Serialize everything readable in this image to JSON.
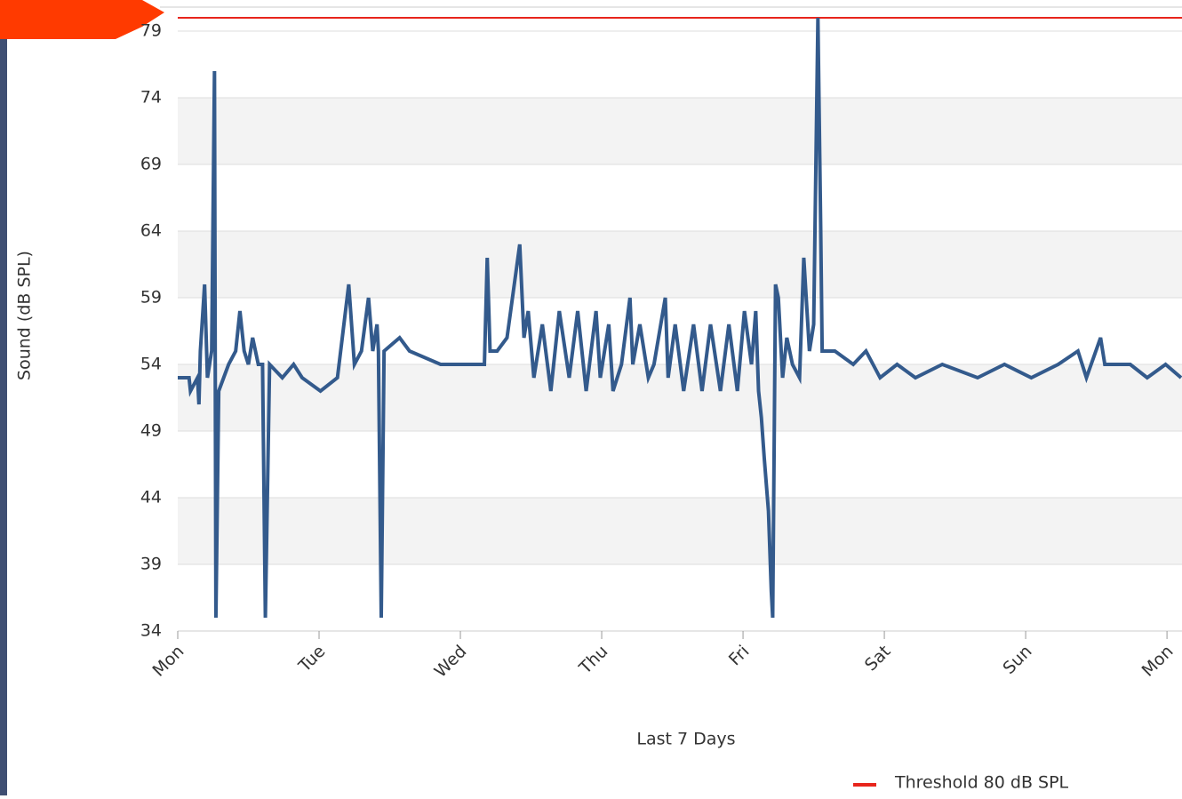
{
  "chart_data": {
    "type": "line",
    "y_label": "Sound (dB SPL)",
    "x_label": "Last 7 Days",
    "x": [
      0.0,
      0.08,
      0.09,
      0.14,
      0.15,
      0.16,
      0.19,
      0.21,
      0.24,
      0.26,
      0.27,
      0.29,
      0.36,
      0.41,
      0.44,
      0.47,
      0.5,
      0.53,
      0.57,
      0.6,
      0.62,
      0.65,
      0.74,
      0.82,
      0.88,
      1.01,
      1.13,
      1.21,
      1.25,
      1.3,
      1.35,
      1.38,
      1.41,
      1.42,
      1.44,
      1.46,
      1.57,
      1.64,
      1.86,
      2.01,
      2.17,
      2.19,
      2.21,
      2.26,
      2.33,
      2.42,
      2.45,
      2.48,
      2.52,
      2.58,
      2.64,
      2.7,
      2.77,
      2.83,
      2.89,
      2.96,
      2.99,
      3.05,
      3.08,
      3.14,
      3.2,
      3.22,
      3.27,
      3.33,
      3.37,
      3.45,
      3.47,
      3.52,
      3.58,
      3.65,
      3.71,
      3.77,
      3.84,
      3.9,
      3.96,
      4.01,
      4.06,
      4.09,
      4.11,
      4.13,
      4.15,
      4.18,
      4.2,
      4.21,
      4.23,
      4.25,
      4.28,
      4.31,
      4.35,
      4.4,
      4.43,
      4.47,
      4.5,
      4.53,
      4.55,
      4.56,
      4.65,
      4.78,
      4.87,
      4.97,
      5.09,
      5.22,
      5.41,
      5.66,
      5.85,
      6.04,
      6.23,
      6.37,
      6.43,
      6.53,
      6.56,
      6.74,
      6.86,
      6.99,
      7.1
    ],
    "series": [
      {
        "color": "#335a8c",
        "values": [
          53,
          53,
          52,
          53,
          51,
          55,
          60,
          53,
          55,
          76,
          35,
          52,
          54,
          55,
          58,
          55,
          54,
          56,
          54,
          54,
          35,
          54,
          53,
          54,
          53,
          52,
          53,
          60,
          54,
          55,
          59,
          55,
          57,
          55,
          35,
          55,
          56,
          55,
          54,
          54,
          54,
          62,
          55,
          55,
          56,
          63,
          56,
          58,
          53,
          57,
          52,
          58,
          53,
          58,
          52,
          58,
          53,
          57,
          52,
          54,
          59,
          54,
          57,
          53,
          54,
          59,
          53,
          57,
          52,
          57,
          52,
          57,
          52,
          57,
          52,
          58,
          54,
          58,
          52,
          50,
          47,
          43,
          37,
          35,
          60,
          59,
          53,
          56,
          54,
          53,
          62,
          55,
          57,
          80,
          64,
          55,
          55,
          54,
          55,
          53,
          54,
          53,
          54,
          53,
          54,
          53,
          54,
          55,
          53,
          56,
          54,
          54,
          53,
          54,
          53
        ]
      }
    ],
    "threshold": {
      "name": "Threshold 80 dB SPL",
      "value": 80,
      "color": "#e8251c"
    },
    "xlim": [
      0,
      7.1
    ],
    "xticks": [
      {
        "value": 0,
        "label": "Mon"
      },
      {
        "value": 1,
        "label": "Tue"
      },
      {
        "value": 2,
        "label": "Wed"
      },
      {
        "value": 3,
        "label": "Thu"
      },
      {
        "value": 4,
        "label": "Fri"
      },
      {
        "value": 5,
        "label": "Sat"
      },
      {
        "value": 6,
        "label": "Sun"
      },
      {
        "value": 7,
        "label": "Mon"
      }
    ],
    "ylim": [
      34,
      80.8
    ],
    "yticks": [
      34,
      39,
      44,
      49,
      54,
      59,
      64,
      69,
      74,
      79
    ],
    "grid": true
  }
}
